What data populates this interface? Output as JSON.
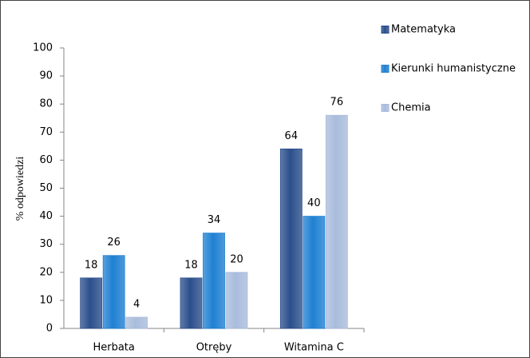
{
  "chart_data": {
    "type": "bar",
    "y_label": "% odpowiedzi",
    "categories": [
      "Herbata",
      "Otręby",
      "Witamina C"
    ],
    "series": [
      {
        "name": "Matematyka",
        "color": "#2b4f8c",
        "values": [
          18,
          18,
          64
        ]
      },
      {
        "name": "Kierunki humanistyczne",
        "color": "#1f80d2",
        "values": [
          26,
          34,
          40
        ]
      },
      {
        "name": "Chemia",
        "color": "#a9bcdc",
        "values": [
          4,
          20,
          76
        ]
      }
    ],
    "ylim": [
      0,
      100
    ],
    "yticks": [
      0,
      10,
      20,
      30,
      40,
      50,
      60,
      70,
      80,
      90,
      100
    ],
    "grid": false,
    "legend": "right"
  }
}
